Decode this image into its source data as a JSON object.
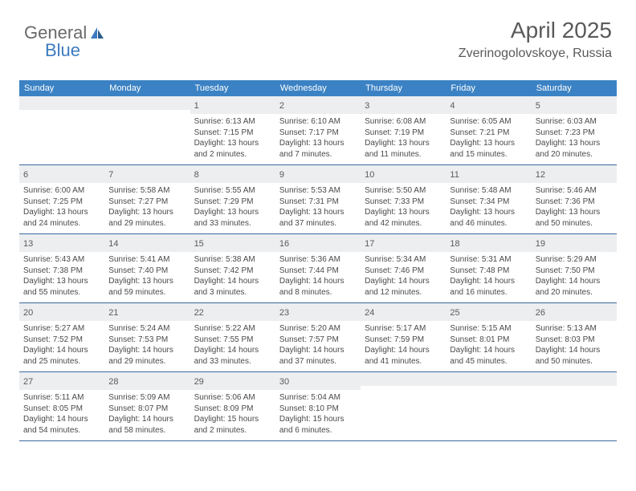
{
  "logo": {
    "text1": "General",
    "text2": "Blue"
  },
  "header": {
    "title": "April 2025",
    "location": "Zverinogolovskoye, Russia"
  },
  "colors": {
    "header_bg": "#3b82c4",
    "header_text": "#ffffff",
    "daynum_bg": "#eceef0",
    "border": "#3b6a9e",
    "text": "#4a4a4a",
    "logo_blue": "#3b7bbf"
  },
  "weekdays": [
    "Sunday",
    "Monday",
    "Tuesday",
    "Wednesday",
    "Thursday",
    "Friday",
    "Saturday"
  ],
  "weeks": [
    [
      null,
      null,
      {
        "n": "1",
        "sr": "Sunrise: 6:13 AM",
        "ss": "Sunset: 7:15 PM",
        "d1": "Daylight: 13 hours",
        "d2": "and 2 minutes."
      },
      {
        "n": "2",
        "sr": "Sunrise: 6:10 AM",
        "ss": "Sunset: 7:17 PM",
        "d1": "Daylight: 13 hours",
        "d2": "and 7 minutes."
      },
      {
        "n": "3",
        "sr": "Sunrise: 6:08 AM",
        "ss": "Sunset: 7:19 PM",
        "d1": "Daylight: 13 hours",
        "d2": "and 11 minutes."
      },
      {
        "n": "4",
        "sr": "Sunrise: 6:05 AM",
        "ss": "Sunset: 7:21 PM",
        "d1": "Daylight: 13 hours",
        "d2": "and 15 minutes."
      },
      {
        "n": "5",
        "sr": "Sunrise: 6:03 AM",
        "ss": "Sunset: 7:23 PM",
        "d1": "Daylight: 13 hours",
        "d2": "and 20 minutes."
      }
    ],
    [
      {
        "n": "6",
        "sr": "Sunrise: 6:00 AM",
        "ss": "Sunset: 7:25 PM",
        "d1": "Daylight: 13 hours",
        "d2": "and 24 minutes."
      },
      {
        "n": "7",
        "sr": "Sunrise: 5:58 AM",
        "ss": "Sunset: 7:27 PM",
        "d1": "Daylight: 13 hours",
        "d2": "and 29 minutes."
      },
      {
        "n": "8",
        "sr": "Sunrise: 5:55 AM",
        "ss": "Sunset: 7:29 PM",
        "d1": "Daylight: 13 hours",
        "d2": "and 33 minutes."
      },
      {
        "n": "9",
        "sr": "Sunrise: 5:53 AM",
        "ss": "Sunset: 7:31 PM",
        "d1": "Daylight: 13 hours",
        "d2": "and 37 minutes."
      },
      {
        "n": "10",
        "sr": "Sunrise: 5:50 AM",
        "ss": "Sunset: 7:33 PM",
        "d1": "Daylight: 13 hours",
        "d2": "and 42 minutes."
      },
      {
        "n": "11",
        "sr": "Sunrise: 5:48 AM",
        "ss": "Sunset: 7:34 PM",
        "d1": "Daylight: 13 hours",
        "d2": "and 46 minutes."
      },
      {
        "n": "12",
        "sr": "Sunrise: 5:46 AM",
        "ss": "Sunset: 7:36 PM",
        "d1": "Daylight: 13 hours",
        "d2": "and 50 minutes."
      }
    ],
    [
      {
        "n": "13",
        "sr": "Sunrise: 5:43 AM",
        "ss": "Sunset: 7:38 PM",
        "d1": "Daylight: 13 hours",
        "d2": "and 55 minutes."
      },
      {
        "n": "14",
        "sr": "Sunrise: 5:41 AM",
        "ss": "Sunset: 7:40 PM",
        "d1": "Daylight: 13 hours",
        "d2": "and 59 minutes."
      },
      {
        "n": "15",
        "sr": "Sunrise: 5:38 AM",
        "ss": "Sunset: 7:42 PM",
        "d1": "Daylight: 14 hours",
        "d2": "and 3 minutes."
      },
      {
        "n": "16",
        "sr": "Sunrise: 5:36 AM",
        "ss": "Sunset: 7:44 PM",
        "d1": "Daylight: 14 hours",
        "d2": "and 8 minutes."
      },
      {
        "n": "17",
        "sr": "Sunrise: 5:34 AM",
        "ss": "Sunset: 7:46 PM",
        "d1": "Daylight: 14 hours",
        "d2": "and 12 minutes."
      },
      {
        "n": "18",
        "sr": "Sunrise: 5:31 AM",
        "ss": "Sunset: 7:48 PM",
        "d1": "Daylight: 14 hours",
        "d2": "and 16 minutes."
      },
      {
        "n": "19",
        "sr": "Sunrise: 5:29 AM",
        "ss": "Sunset: 7:50 PM",
        "d1": "Daylight: 14 hours",
        "d2": "and 20 minutes."
      }
    ],
    [
      {
        "n": "20",
        "sr": "Sunrise: 5:27 AM",
        "ss": "Sunset: 7:52 PM",
        "d1": "Daylight: 14 hours",
        "d2": "and 25 minutes."
      },
      {
        "n": "21",
        "sr": "Sunrise: 5:24 AM",
        "ss": "Sunset: 7:53 PM",
        "d1": "Daylight: 14 hours",
        "d2": "and 29 minutes."
      },
      {
        "n": "22",
        "sr": "Sunrise: 5:22 AM",
        "ss": "Sunset: 7:55 PM",
        "d1": "Daylight: 14 hours",
        "d2": "and 33 minutes."
      },
      {
        "n": "23",
        "sr": "Sunrise: 5:20 AM",
        "ss": "Sunset: 7:57 PM",
        "d1": "Daylight: 14 hours",
        "d2": "and 37 minutes."
      },
      {
        "n": "24",
        "sr": "Sunrise: 5:17 AM",
        "ss": "Sunset: 7:59 PM",
        "d1": "Daylight: 14 hours",
        "d2": "and 41 minutes."
      },
      {
        "n": "25",
        "sr": "Sunrise: 5:15 AM",
        "ss": "Sunset: 8:01 PM",
        "d1": "Daylight: 14 hours",
        "d2": "and 45 minutes."
      },
      {
        "n": "26",
        "sr": "Sunrise: 5:13 AM",
        "ss": "Sunset: 8:03 PM",
        "d1": "Daylight: 14 hours",
        "d2": "and 50 minutes."
      }
    ],
    [
      {
        "n": "27",
        "sr": "Sunrise: 5:11 AM",
        "ss": "Sunset: 8:05 PM",
        "d1": "Daylight: 14 hours",
        "d2": "and 54 minutes."
      },
      {
        "n": "28",
        "sr": "Sunrise: 5:09 AM",
        "ss": "Sunset: 8:07 PM",
        "d1": "Daylight: 14 hours",
        "d2": "and 58 minutes."
      },
      {
        "n": "29",
        "sr": "Sunrise: 5:06 AM",
        "ss": "Sunset: 8:09 PM",
        "d1": "Daylight: 15 hours",
        "d2": "and 2 minutes."
      },
      {
        "n": "30",
        "sr": "Sunrise: 5:04 AM",
        "ss": "Sunset: 8:10 PM",
        "d1": "Daylight: 15 hours",
        "d2": "and 6 minutes."
      },
      null,
      null,
      null
    ]
  ]
}
